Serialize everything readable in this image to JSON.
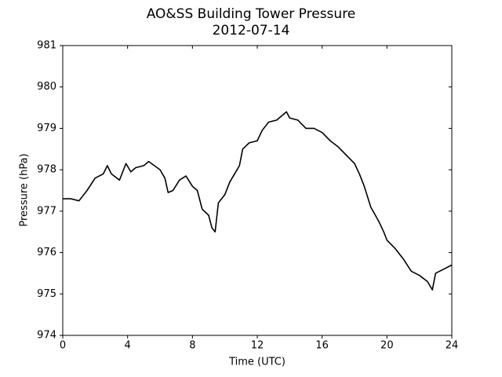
{
  "chart_data": {
    "type": "line",
    "title": "AO&SS Building Tower Pressure",
    "subtitle": "2012-07-14",
    "xlabel": "Time (UTC)",
    "ylabel": "Pressure (hPa)",
    "xlim": [
      0,
      24
    ],
    "xticks": [
      0,
      4,
      8,
      12,
      16,
      20,
      24
    ],
    "ylim": [
      974,
      981
    ],
    "yticks": [
      974,
      975,
      976,
      977,
      978,
      979,
      980,
      981
    ],
    "grid": false,
    "series": [
      {
        "name": "Pressure",
        "color": "#000000",
        "x": [
          0,
          0.5,
          1,
          1.5,
          2,
          2.5,
          2.75,
          3,
          3.5,
          3.9,
          4.2,
          4.5,
          5,
          5.3,
          6,
          6.3,
          6.5,
          6.8,
          7.2,
          7.6,
          8,
          8.3,
          8.6,
          9.0,
          9.2,
          9.4,
          9.6,
          10,
          10.3,
          10.6,
          10.9,
          11.1,
          11.5,
          12,
          12.3,
          12.7,
          13.2,
          13.5,
          13.8,
          14,
          14.5,
          15,
          15.5,
          16,
          16.5,
          17,
          17.5,
          18,
          18.3,
          18.6,
          19,
          19.5,
          19.8,
          20,
          20.5,
          21,
          21.5,
          22,
          22.5,
          22.8,
          23,
          23.5,
          24
        ],
        "values": [
          977.3,
          977.3,
          977.25,
          977.5,
          977.8,
          977.9,
          978.1,
          977.9,
          977.75,
          978.15,
          977.95,
          978.05,
          978.1,
          978.2,
          978.0,
          977.8,
          977.45,
          977.5,
          977.75,
          977.85,
          977.6,
          977.5,
          977.05,
          976.9,
          976.6,
          976.5,
          977.2,
          977.4,
          977.7,
          977.9,
          978.1,
          978.5,
          978.65,
          978.7,
          978.95,
          979.15,
          979.2,
          979.3,
          979.4,
          979.25,
          979.2,
          979.0,
          979.0,
          978.9,
          978.7,
          978.55,
          978.35,
          978.15,
          977.9,
          977.6,
          977.1,
          976.75,
          976.5,
          976.3,
          976.1,
          975.85,
          975.55,
          975.45,
          975.3,
          975.1,
          975.5,
          975.6,
          975.7
        ]
      }
    ]
  }
}
